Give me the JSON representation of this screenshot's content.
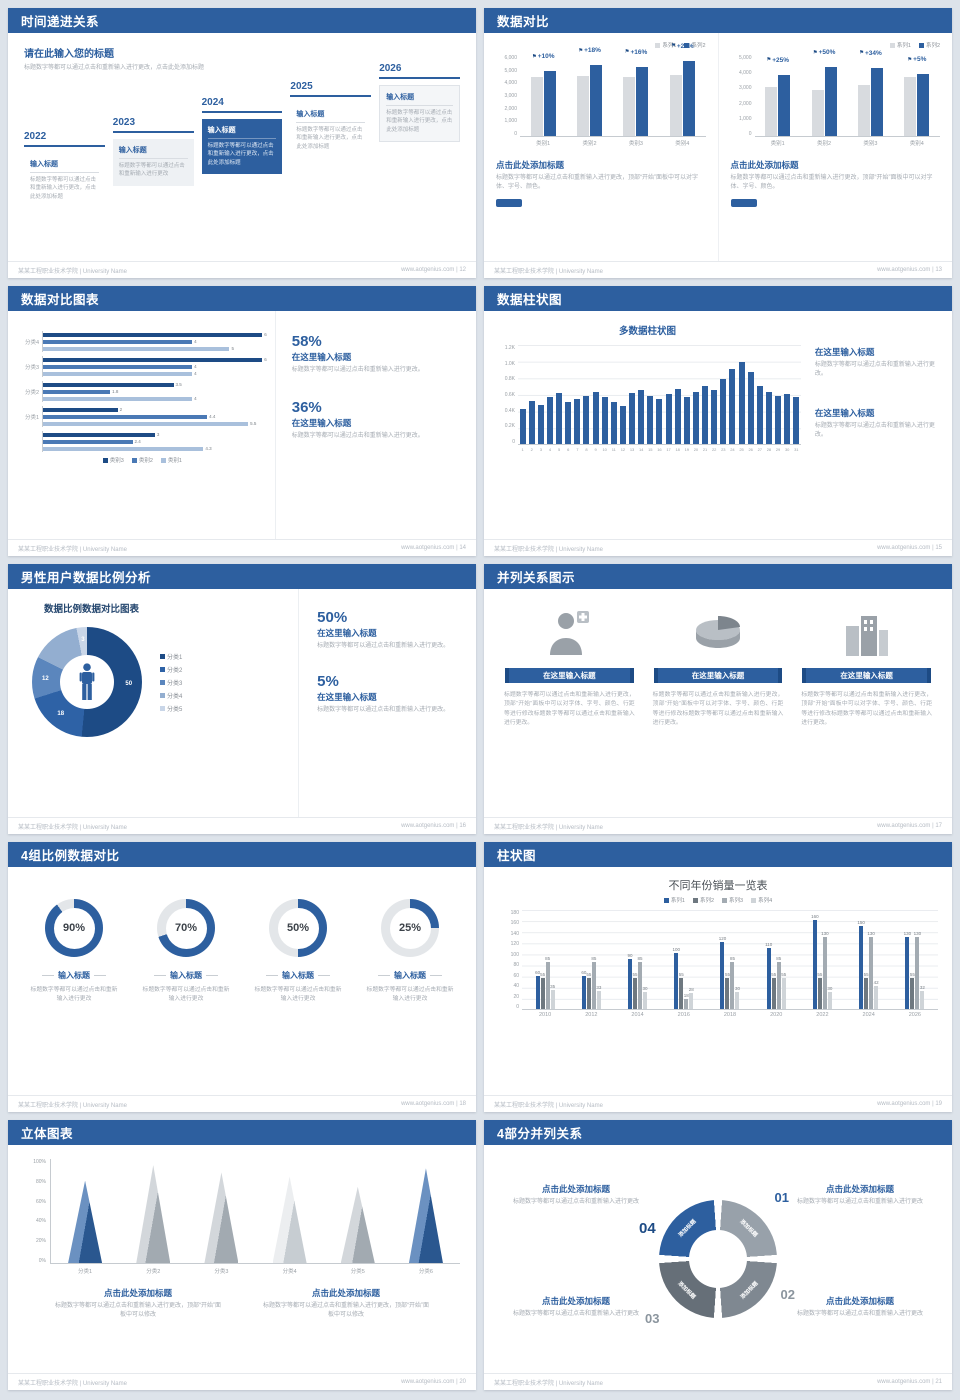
{
  "colors": {
    "primary": "#2d5f9f",
    "primary_dark": "#1d4b85"
  },
  "footer": {
    "org": "某某工程职业技术学院 | University Name"
  },
  "slides": {
    "s12": {
      "header": "时间递进关系",
      "footer_right": "www.aotgenius.com | 12",
      "intro_title": "请在此输入您的标题",
      "intro_text": "标题数字等都可以通过点击和重新输入进行更改，点击此处添加标题",
      "items": [
        {
          "year": "2022",
          "title": "输入标题",
          "text": "标题数字等都可以通过点击和重新输入进行更改，点击此处添加标题"
        },
        {
          "year": "2023",
          "title": "输入标题",
          "text": "标题数字等都可以通过点击和重新输入进行更改"
        },
        {
          "year": "2024",
          "title": "输入标题",
          "text": "标题数字等都可以通过点击和重新输入进行更改，点击此处添加标题"
        },
        {
          "year": "2025",
          "title": "输入标题",
          "text": "标题数字等都可以通过点击和重新输入进行更改，点击此处添加标题"
        },
        {
          "year": "2026",
          "title": "输入标题",
          "text": "标题数字等都可以通过点击和重新输入进行更改，点击此处添加标题"
        }
      ]
    },
    "s13": {
      "header": "数据对比",
      "footer_right": "www.aotgenius.com | 13",
      "left": {
        "heading": "点击此处添加标题",
        "body": "标题数字等都可以通过点击和重新输入进行更改，顶部“开始”面板中可以对字体、字号、颜色。",
        "chart": {
          "type": "bar",
          "categories": [
            "类别1",
            "类别2",
            "类别3",
            "类别4"
          ],
          "series": [
            {
              "name": "系列1",
              "color": "#d8dbdf",
              "values": [
                4300,
                4400,
                4350,
                4500
              ]
            },
            {
              "name": "系列2",
              "color": "#2d5f9f",
              "values": [
                4730,
                5190,
                5050,
                5490
              ]
            }
          ],
          "pct_labels": [
            "+10%",
            "+18%",
            "+16%",
            "+22%"
          ],
          "ymax": 6000,
          "yticks": [
            "6,000",
            "5,000",
            "4,000",
            "3,000",
            "2,000",
            "1,000",
            "0"
          ]
        }
      },
      "right": {
        "heading": "点击此处添加标题",
        "body": "标题数字等都可以通过点击和重新输入进行更改，顶部“开始”面板中可以对字体、字号、颜色。",
        "chart": {
          "type": "bar",
          "categories": [
            "类别1",
            "类别2",
            "类别3",
            "类别4"
          ],
          "series": [
            {
              "name": "系列1",
              "color": "#d8dbdf",
              "values": [
                3000,
                2800,
                3100,
                3600
              ]
            },
            {
              "name": "系列2",
              "color": "#2d5f9f",
              "values": [
                3750,
                4200,
                4150,
                3780
              ]
            }
          ],
          "pct_labels": [
            "+25%",
            "+50%",
            "+34%",
            "+5%"
          ],
          "ymax": 5000,
          "yticks": [
            "5,000",
            "4,000",
            "3,000",
            "2,000",
            "1,000",
            "0"
          ]
        }
      }
    },
    "s14": {
      "header": "数据对比图表",
      "footer_right": "www.aotgenius.com | 14",
      "chart": {
        "type": "bar",
        "orientation": "horizontal",
        "xmax": 6,
        "series_colors": [
          "#1d4b85",
          "#4a79b5",
          "#a9c0dc"
        ],
        "legend": [
          {
            "name": "类别3",
            "color": "#1d4b85"
          },
          {
            "name": "类别2",
            "color": "#4a79b5"
          },
          {
            "name": "类别1",
            "color": "#a9c0dc"
          }
        ],
        "groups": [
          {
            "label": "分类4",
            "values": [
              6,
              4,
              5
            ]
          },
          {
            "label": "分类3",
            "values": [
              6,
              4,
              4
            ]
          },
          {
            "label": "分类2",
            "values": [
              3.5,
              1.8,
              4
            ]
          },
          {
            "label": "分类1",
            "values": [
              2,
              4.4,
              5.5
            ]
          },
          {
            "label": "",
            "values": [
              3,
              2.4,
              4.3
            ]
          }
        ]
      },
      "stats": [
        {
          "pct": "58%",
          "title": "在这里输入标题",
          "body": "标题数字等都可以通过点击和重新输入进行更改。"
        },
        {
          "pct": "36%",
          "title": "在这里输入标题",
          "body": "标题数字等都可以通过点击和重新输入进行更改。"
        }
      ]
    },
    "s15": {
      "header": "数据柱状图",
      "footer_right": "www.aotgenius.com | 15",
      "chart_title": "多数据柱状图",
      "chart": {
        "type": "bar",
        "color": "#2d5f9f",
        "x": [
          "1",
          "2",
          "3",
          "4",
          "5",
          "6",
          "7",
          "8",
          "9",
          "10",
          "11",
          "12",
          "13",
          "14",
          "15",
          "16",
          "17",
          "18",
          "19",
          "20",
          "21",
          "22",
          "23",
          "24",
          "25",
          "26",
          "27",
          "28",
          "29",
          "30",
          "31"
        ],
        "values": [
          420,
          520,
          470,
          560,
          610,
          500,
          540,
          580,
          620,
          560,
          500,
          460,
          610,
          650,
          580,
          540,
          600,
          660,
          570,
          620,
          700,
          650,
          780,
          900,
          980,
          860,
          700,
          620,
          580,
          600,
          560
        ],
        "ymax": 1200,
        "yticks": [
          "1.2K",
          "1.0K",
          "0.8K",
          "0.6K",
          "0.4K",
          "0.2K",
          "0"
        ]
      },
      "stats": [
        {
          "title": "在这里输入标题",
          "body": "标题数字等都可以通过点击和重新输入进行更改。"
        },
        {
          "title": "在这里输入标题",
          "body": "标题数字等都可以通过点击和重新输入进行更改。"
        }
      ]
    },
    "s16": {
      "header": "男性用户数据比例分析",
      "footer_right": "www.aotgenius.com | 16",
      "chart_title": "数据比例数据对比图表",
      "donut": {
        "type": "pie",
        "values": [
          50,
          18,
          12,
          14,
          3
        ],
        "labels": [
          "50",
          "18",
          "12",
          "",
          "3"
        ],
        "colors": [
          "#1d4b85",
          "#2e62a6",
          "#5b86bd",
          "#93aed0",
          "#c9d6e8"
        ],
        "legend": [
          "分类1",
          "分类2",
          "分类3",
          "分类4",
          "分类5"
        ]
      },
      "stats": [
        {
          "pct": "50%",
          "title": "在这里输入标题",
          "body": "标题数字等都可以通过点击和重新输入进行更改。"
        },
        {
          "pct": "5%",
          "title": "在这里输入标题",
          "body": "标题数字等都可以通过点击和重新输入进行更改。"
        }
      ]
    },
    "s17": {
      "header": "并列关系图示",
      "footer_right": "www.aotgenius.com | 17",
      "columns": [
        {
          "icon": "nurse-icon",
          "title": "在这里输入标题",
          "body": "标题数字等都可以通过点击和重新输入进行更改，顶部“开始”面板中可以对字体、字号、颜色、行距等进行修改标题数字等都可以通过点击和重新输入进行更改。"
        },
        {
          "icon": "pie-3d-icon",
          "title": "在这里输入标题",
          "body": "标题数字等都可以通过点击和重新输入进行更改，顶部“开始”面板中可以对字体、字号、颜色、行距等进行修改标题数字等都可以通过点击和重新输入进行更改。"
        },
        {
          "icon": "building-icon",
          "title": "在这里输入标题",
          "body": "标题数字等都可以通过点击和重新输入进行更改，顶部“开始”面板中可以对字体、字号、颜色、行距等进行修改标题数字等都可以通过点击和重新输入进行更改。"
        }
      ]
    },
    "s18": {
      "header": "4组比例数据对比",
      "footer_right": "www.aotgenius.com | 18",
      "rings": [
        {
          "pct": 90,
          "label": "90%",
          "title": "输入标题",
          "body": "标题数字等都可以通过点击和重新输入进行更改"
        },
        {
          "pct": 70,
          "label": "70%",
          "title": "输入标题",
          "body": "标题数字等都可以通过点击和重新输入进行更改"
        },
        {
          "pct": 50,
          "label": "50%",
          "title": "输入标题",
          "body": "标题数字等都可以通过点击和重新输入进行更改"
        },
        {
          "pct": 25,
          "label": "25%",
          "title": "输入标题",
          "body": "标题数字等都可以通过点击和重新输入进行更改"
        }
      ]
    },
    "s19": {
      "header": "柱状图",
      "footer_right": "www.aotgenius.com | 19",
      "chart_title": "不同年份销量一览表",
      "chart": {
        "type": "bar",
        "categories": [
          "2010",
          "2012",
          "2014",
          "2016",
          "2018",
          "2020",
          "2022",
          "2024",
          "2026"
        ],
        "series": [
          {
            "name": "系列1",
            "color": "#2d5f9f",
            "values": [
              60,
              60,
              90,
              100,
              120,
              110,
              160,
              150,
              130
            ]
          },
          {
            "name": "系列2",
            "color": "#6e7880",
            "values": [
              55,
              55,
              55,
              55,
              55,
              55,
              55,
              55,
              55
            ]
          },
          {
            "name": "系列3",
            "color": "#a3abb2",
            "values": [
              85,
              85,
              85,
              18,
              85,
              85,
              130,
              130,
              130
            ]
          },
          {
            "name": "系列4",
            "color": "#cfd4d8",
            "values": [
              35,
              33,
              30,
              28,
              30,
              55,
              30,
              42,
              32
            ]
          }
        ],
        "ymax": 180,
        "yticks": [
          "180",
          "160",
          "140",
          "120",
          "100",
          "80",
          "60",
          "40",
          "20",
          "0"
        ]
      }
    },
    "s20": {
      "header": "立体图表",
      "footer_right": "www.aotgenius.com | 20",
      "cones": {
        "type": "bar",
        "categories": [
          "分类1",
          "分类2",
          "分类3",
          "分类4",
          "分类5",
          "分类6"
        ],
        "values": [
          80,
          95,
          88,
          84,
          74,
          92
        ],
        "palette": [
          "blue",
          "gray",
          "gray",
          "lightgray",
          "gray",
          "blue"
        ],
        "yticks": [
          "100%",
          "80%",
          "60%",
          "40%",
          "20%",
          "0%"
        ]
      },
      "blocks": [
        {
          "title": "点击此处添加标题",
          "body": "标题数字等都可以通过点击和重新输入进行更改，顶部“开始”面板中可以修改"
        },
        {
          "title": "点击此处添加标题",
          "body": "标题数字等都可以通过点击和重新输入进行更改，顶部“开始”面板中可以修改"
        }
      ]
    },
    "s21": {
      "header": "4部分并列关系",
      "footer_right": "www.aotgenius.com | 21",
      "wheel": {
        "segments": [
          {
            "num": "01",
            "label": "添加标题",
            "color": "#98a1aa"
          },
          {
            "num": "02",
            "label": "添加标题",
            "color": "#7f8891"
          },
          {
            "num": "03",
            "label": "添加标题",
            "color": "#666f78"
          },
          {
            "num": "04",
            "label": "添加标题",
            "color": "#2d5f9f"
          }
        ]
      },
      "blocks": [
        {
          "title": "点击此处添加标题",
          "body": "标题数字等都可以通过点击和重新输入进行更改"
        },
        {
          "title": "点击此处添加标题",
          "body": "标题数字等都可以通过点击和重新输入进行更改"
        },
        {
          "title": "点击此处添加标题",
          "body": "标题数字等都可以通过点击和重新输入进行更改"
        },
        {
          "title": "点击此处添加标题",
          "body": "标题数字等都可以通过点击和重新输入进行更改"
        }
      ]
    }
  }
}
